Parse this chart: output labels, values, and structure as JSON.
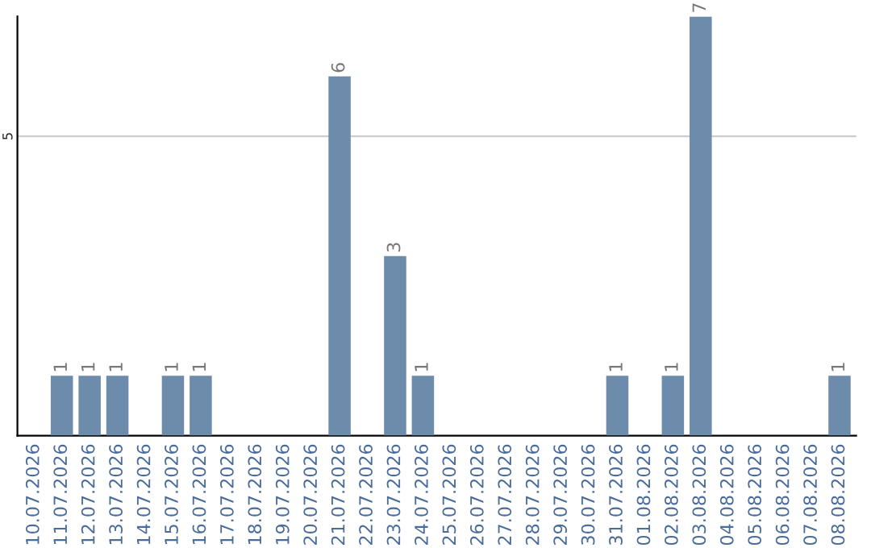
{
  "chart_data": {
    "type": "bar",
    "categories": [
      "10.07.2026",
      "11.07.2026",
      "12.07.2026",
      "13.07.2026",
      "14.07.2026",
      "15.07.2026",
      "16.07.2026",
      "17.07.2026",
      "18.07.2026",
      "19.07.2026",
      "20.07.2026",
      "21.07.2026",
      "22.07.2026",
      "23.07.2026",
      "24.07.2026",
      "25.07.2026",
      "26.07.2026",
      "27.07.2026",
      "28.07.2026",
      "29.07.2026",
      "30.07.2026",
      "31.07.2026",
      "01.08.2026",
      "02.08.2026",
      "03.08.2026",
      "04.08.2026",
      "05.08.2026",
      "06.08.2026",
      "07.08.2026",
      "08.08.2026"
    ],
    "values": [
      0,
      1,
      1,
      1,
      0,
      1,
      1,
      0,
      0,
      0,
      0,
      6,
      0,
      3,
      1,
      0,
      0,
      0,
      0,
      0,
      0,
      1,
      0,
      1,
      7,
      0,
      0,
      0,
      0,
      1
    ],
    "value_labels": [
      null,
      "1",
      "1",
      "1",
      null,
      "1",
      "1",
      null,
      null,
      null,
      null,
      "6",
      null,
      "3",
      "1",
      null,
      null,
      null,
      null,
      null,
      null,
      "1",
      null,
      "1",
      "7",
      null,
      null,
      null,
      null,
      "1"
    ],
    "color": "#6d8cab",
    "ylim": [
      0,
      7.0
    ],
    "yticks": [
      5
    ],
    "grid": "y"
  }
}
